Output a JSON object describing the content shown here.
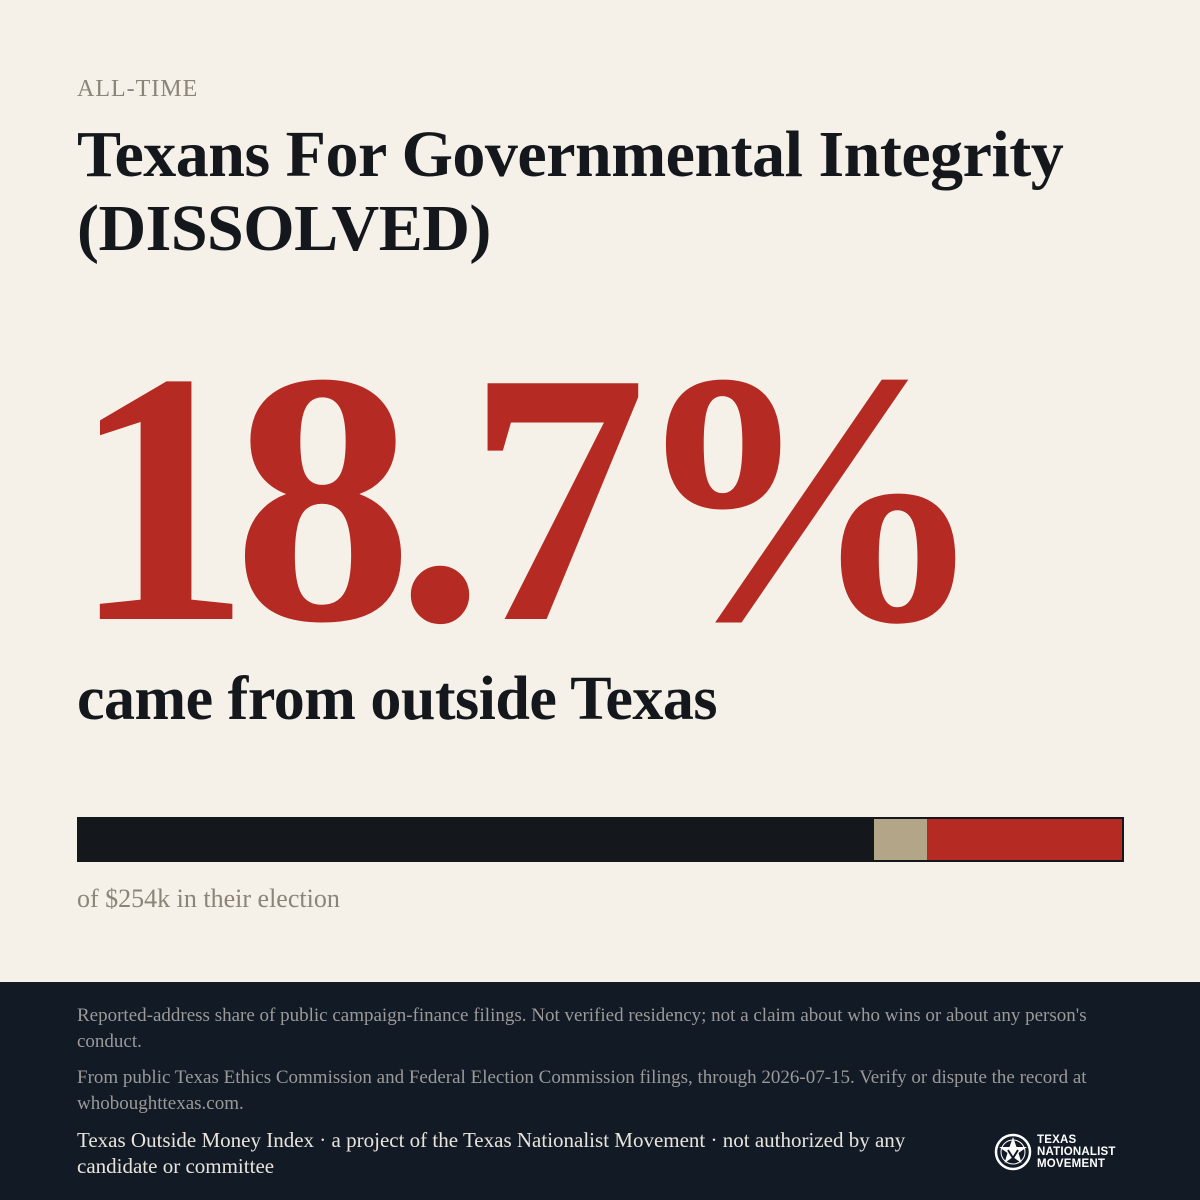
{
  "header": {
    "kicker": "ALL-TIME",
    "title": "Texans For Governmental Integrity (DISSOLVED)"
  },
  "headline": {
    "percent": "18.7%",
    "subtitle": "came from outside Texas"
  },
  "bar": {
    "segments": [
      {
        "name": "in-texas",
        "share": 0.762,
        "color": "#14171c"
      },
      {
        "name": "unknown",
        "share": 0.051,
        "color": "#b3a588"
      },
      {
        "name": "outside-texas",
        "share": 0.187,
        "color": "#b52a22"
      }
    ]
  },
  "caption": "of $254k in their election",
  "footer": {
    "disclaimer": "Reported-address share of public campaign-finance filings. Not verified residency; not a claim about who wins or about any person's conduct.",
    "source": "From public Texas Ethics Commission and Federal Election Commission filings, through 2026-07-15. Verify or dispute the record at whoboughttexas.com.",
    "credit": "Texas Outside Money Index · a project of the Texas Nationalist Movement · not authorized by any candidate or committee",
    "logo": {
      "line1": "TEXAS",
      "line2": "NATIONALIST",
      "line3": "MOVEMENT",
      "icon": "star-emblem-icon"
    }
  },
  "colors": {
    "background": "#f5f0e8",
    "accent": "#b52a22",
    "dark": "#14171c",
    "footer": "#121a26"
  }
}
